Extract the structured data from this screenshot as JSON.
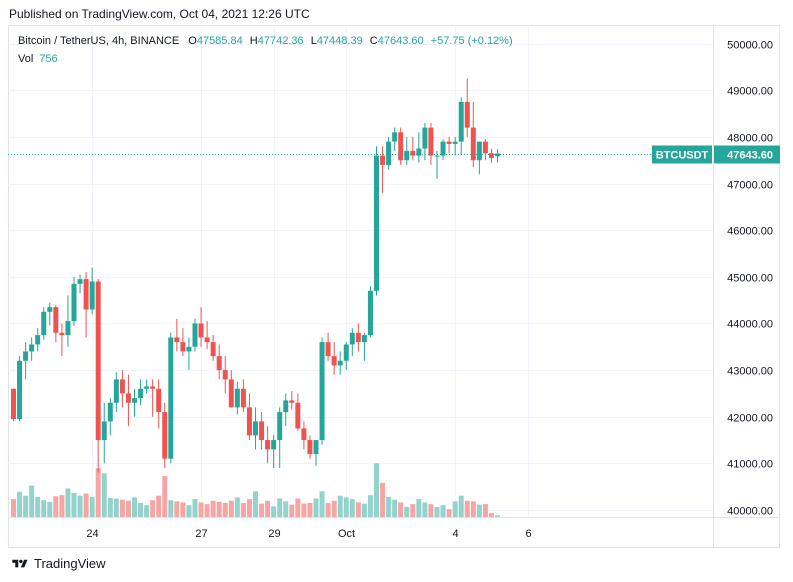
{
  "header": {
    "published": "Published on TradingView.com, Oct 04, 2021 12:26 UTC"
  },
  "legend": {
    "symbol": "Bitcoin / TetherUS, 4h, BINANCE",
    "open_label": "O",
    "open": "47585.84",
    "high_label": "H",
    "high": "47742.36",
    "low_label": "L",
    "low": "47448.39",
    "close_label": "C",
    "close": "47643.60",
    "change": "+57.75 (+0.12%)",
    "vol_label": "Vol",
    "vol": "756"
  },
  "footer": {
    "brand": "TradingView"
  },
  "colors": {
    "up": "#26a69a",
    "down": "#ef5350",
    "up_volume": "#93d3cc",
    "down_volume": "#f4a6a4",
    "grid": "#f0f3fa",
    "price_tag": "#26a69a"
  },
  "chart_data": {
    "type": "candlestick",
    "symbol_tag": "BTCUSDT",
    "last_price": "47643.60",
    "y_ticks": [
      "50000.00",
      "49000.00",
      "48000.00",
      "47000.00",
      "46000.00",
      "45000.00",
      "44000.00",
      "43000.00",
      "42000.00",
      "41000.00",
      "40000.00"
    ],
    "ylim": [
      39850,
      50400
    ],
    "x_ticks": [
      {
        "label": "24",
        "index": 13
      },
      {
        "label": "27",
        "index": 31
      },
      {
        "label": "29",
        "index": 43
      },
      {
        "label": "Oct",
        "index": 55
      },
      {
        "label": "4",
        "index": 73
      },
      {
        "label": "6",
        "index": 85
      }
    ],
    "candles": [
      [
        42600,
        42600,
        41900,
        41950
      ],
      [
        41950,
        43300,
        41900,
        43200
      ],
      [
        43200,
        43600,
        42800,
        43400
      ],
      [
        43400,
        43700,
        43200,
        43550
      ],
      [
        43550,
        43900,
        43400,
        43750
      ],
      [
        43750,
        44350,
        43650,
        44250
      ],
      [
        44250,
        44450,
        43950,
        44350
      ],
      [
        44350,
        44400,
        43600,
        43800
      ],
      [
        43800,
        44000,
        43300,
        43750
      ],
      [
        43750,
        44600,
        43500,
        44050
      ],
      [
        44050,
        45000,
        43950,
        44850
      ],
      [
        44850,
        45050,
        44650,
        44950
      ],
      [
        44950,
        45100,
        43700,
        44300
      ],
      [
        44300,
        45200,
        44200,
        44900
      ],
      [
        44900,
        44950,
        40800,
        41500
      ],
      [
        41500,
        42300,
        41000,
        41900
      ],
      [
        41900,
        42400,
        41600,
        42300
      ],
      [
        42300,
        42950,
        42100,
        42800
      ],
      [
        42800,
        43000,
        42200,
        42500
      ],
      [
        42500,
        42900,
        41800,
        42300
      ],
      [
        42300,
        42600,
        42000,
        42400
      ],
      [
        42400,
        42800,
        42250,
        42600
      ],
      [
        42600,
        42800,
        42500,
        42650
      ],
      [
        42650,
        42800,
        42000,
        42600
      ],
      [
        42600,
        42800,
        41750,
        42100
      ],
      [
        42100,
        42300,
        40900,
        41100
      ],
      [
        41100,
        43800,
        41000,
        43700
      ],
      [
        43700,
        44100,
        43400,
        43600
      ],
      [
        43600,
        43900,
        43300,
        43400
      ],
      [
        43400,
        43700,
        43000,
        43500
      ],
      [
        43500,
        44100,
        43400,
        44000
      ],
      [
        44000,
        44350,
        43500,
        43700
      ],
      [
        43700,
        44050,
        43450,
        43600
      ],
      [
        43600,
        43750,
        43200,
        43300
      ],
      [
        43300,
        43550,
        42800,
        43000
      ],
      [
        43000,
        43300,
        42500,
        42800
      ],
      [
        42800,
        43000,
        42200,
        42200
      ],
      [
        42200,
        42750,
        42050,
        42600
      ],
      [
        42600,
        42800,
        42100,
        42200
      ],
      [
        42200,
        42500,
        41500,
        41600
      ],
      [
        41600,
        42200,
        41300,
        41900
      ],
      [
        41900,
        42100,
        41300,
        41500
      ],
      [
        41500,
        41800,
        41000,
        41300
      ],
      [
        41300,
        41600,
        40900,
        41500
      ],
      [
        41500,
        42200,
        40900,
        42100
      ],
      [
        42100,
        42500,
        41800,
        42350
      ],
      [
        42350,
        42550,
        42150,
        42300
      ],
      [
        42300,
        42500,
        41700,
        41750
      ],
      [
        41750,
        41900,
        41300,
        41500
      ],
      [
        41500,
        41600,
        41100,
        41200
      ],
      [
        41200,
        41500,
        40950,
        41500
      ],
      [
        41500,
        43700,
        41400,
        43600
      ],
      [
        43600,
        43800,
        43200,
        43300
      ],
      [
        43300,
        43600,
        42900,
        43100
      ],
      [
        43100,
        43400,
        42900,
        43200
      ],
      [
        43200,
        43600,
        43000,
        43550
      ],
      [
        43550,
        43900,
        43300,
        43800
      ],
      [
        43800,
        44000,
        43400,
        43600
      ],
      [
        43600,
        43800,
        43200,
        43750
      ],
      [
        43750,
        44800,
        43700,
        44700
      ],
      [
        44700,
        47800,
        44600,
        47600
      ],
      [
        47600,
        47800,
        46800,
        47400
      ],
      [
        47400,
        48000,
        47300,
        47900
      ],
      [
        47900,
        48200,
        47700,
        48100
      ],
      [
        48100,
        48200,
        47400,
        47500
      ],
      [
        47500,
        48000,
        47400,
        47700
      ],
      [
        47700,
        48000,
        47500,
        47600
      ],
      [
        47600,
        48100,
        47450,
        47750
      ],
      [
        47750,
        48300,
        47500,
        48200
      ],
      [
        48200,
        48300,
        47400,
        47600
      ],
      [
        47600,
        47700,
        47100,
        47600
      ],
      [
        47600,
        47950,
        47500,
        47900
      ],
      [
        47900,
        48000,
        47650,
        47850
      ],
      [
        47850,
        48000,
        47600,
        47900
      ],
      [
        47900,
        48850,
        47600,
        48750
      ],
      [
        48750,
        49250,
        48000,
        48200
      ],
      [
        48200,
        48750,
        47350,
        47500
      ],
      [
        47500,
        47900,
        47200,
        47900
      ],
      [
        47900,
        47950,
        47500,
        47650
      ],
      [
        47650,
        47750,
        47450,
        47550
      ],
      [
        47585.84,
        47742.36,
        47448.39,
        47643.6
      ]
    ],
    "volumes": [
      3.2,
      4.5,
      3.8,
      5.6,
      3.6,
      3.0,
      2.7,
      3.7,
      3.9,
      5.1,
      4.3,
      3.8,
      4.2,
      3.6,
      8.7,
      7.8,
      3.4,
      3.3,
      3.1,
      2.9,
      3.5,
      2.5,
      2.1,
      3.0,
      3.8,
      7.3,
      3.0,
      2.8,
      2.6,
      2.1,
      3.2,
      2.6,
      2.3,
      2.9,
      2.7,
      2.5,
      2.9,
      3.5,
      2.5,
      3.2,
      4.6,
      2.4,
      2.9,
      1.9,
      3.3,
      2.8,
      2.2,
      3.3,
      2.4,
      2.5,
      3.3,
      4.6,
      2.5,
      2.9,
      3.8,
      3.5,
      3.2,
      2.6,
      2.4,
      3.9,
      9.6,
      6.1,
      3.6,
      3.1,
      2.6,
      1.8,
      2.3,
      3.2,
      2.6,
      2.3,
      1.8,
      2.1,
      1.4,
      2.8,
      3.8,
      2.9,
      2.8,
      2.2,
      2.3,
      0.7,
      0.3
    ]
  }
}
